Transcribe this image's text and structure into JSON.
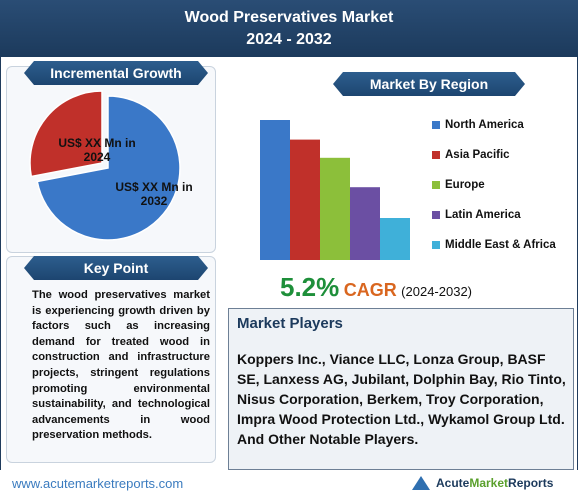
{
  "header": {
    "title_line1": "Wood Preservatives Market",
    "title_line2": "2024 - 2032"
  },
  "incremental_growth": {
    "heading": "Incremental Growth",
    "label_2024": "US$ XX Mn in 2024",
    "label_2032": "US$ XX Mn in 2032",
    "colors": {
      "2024": "#c0302a",
      "2032": "#3a78c8"
    }
  },
  "key_point": {
    "heading": "Key Point",
    "text": "The wood preservatives market is experiencing growth driven by factors such as increasing demand for treated wood in construction and infrastructure projects, stringent regulations promoting environmental sustainability, and technological advancements in wood preservation methods."
  },
  "market_by_region": {
    "heading": "Market By Region"
  },
  "chart_data": [
    {
      "type": "pie",
      "slices": [
        {
          "label": "US$ XX Mn in 2024",
          "value": 28
        },
        {
          "label": "US$ XX Mn in 2032",
          "value": 72
        }
      ]
    },
    {
      "type": "bar",
      "categories": [
        "North America",
        "Asia Pacific",
        "Europe",
        "Latin America",
        "Middle East & Africa"
      ],
      "values": [
        100,
        86,
        73,
        52,
        30
      ],
      "colors": [
        "#3a78c8",
        "#c0302a",
        "#8cbf3a",
        "#6b4fa3",
        "#3fb0d9"
      ],
      "grid": false
    }
  ],
  "cagr": {
    "value": "5.2%",
    "word": "CAGR",
    "range": "(2024-2032)"
  },
  "market_players": {
    "heading": "Market Players",
    "text": "Koppers Inc., Viance LLC, Lonza Group, BASF SE, Lanxess AG, Jubilant, Dolphin Bay, Rio Tinto, Nisus Corporation, Berkem, Troy Corporation, Impra Wood Protection Ltd., Wykamol Group Ltd. And Other Notable Players."
  },
  "footer": {
    "url": "www.acutemarketreports.com",
    "brand_part1": "Acute ",
    "brand_part2": "Market",
    "brand_part3": " Reports"
  }
}
